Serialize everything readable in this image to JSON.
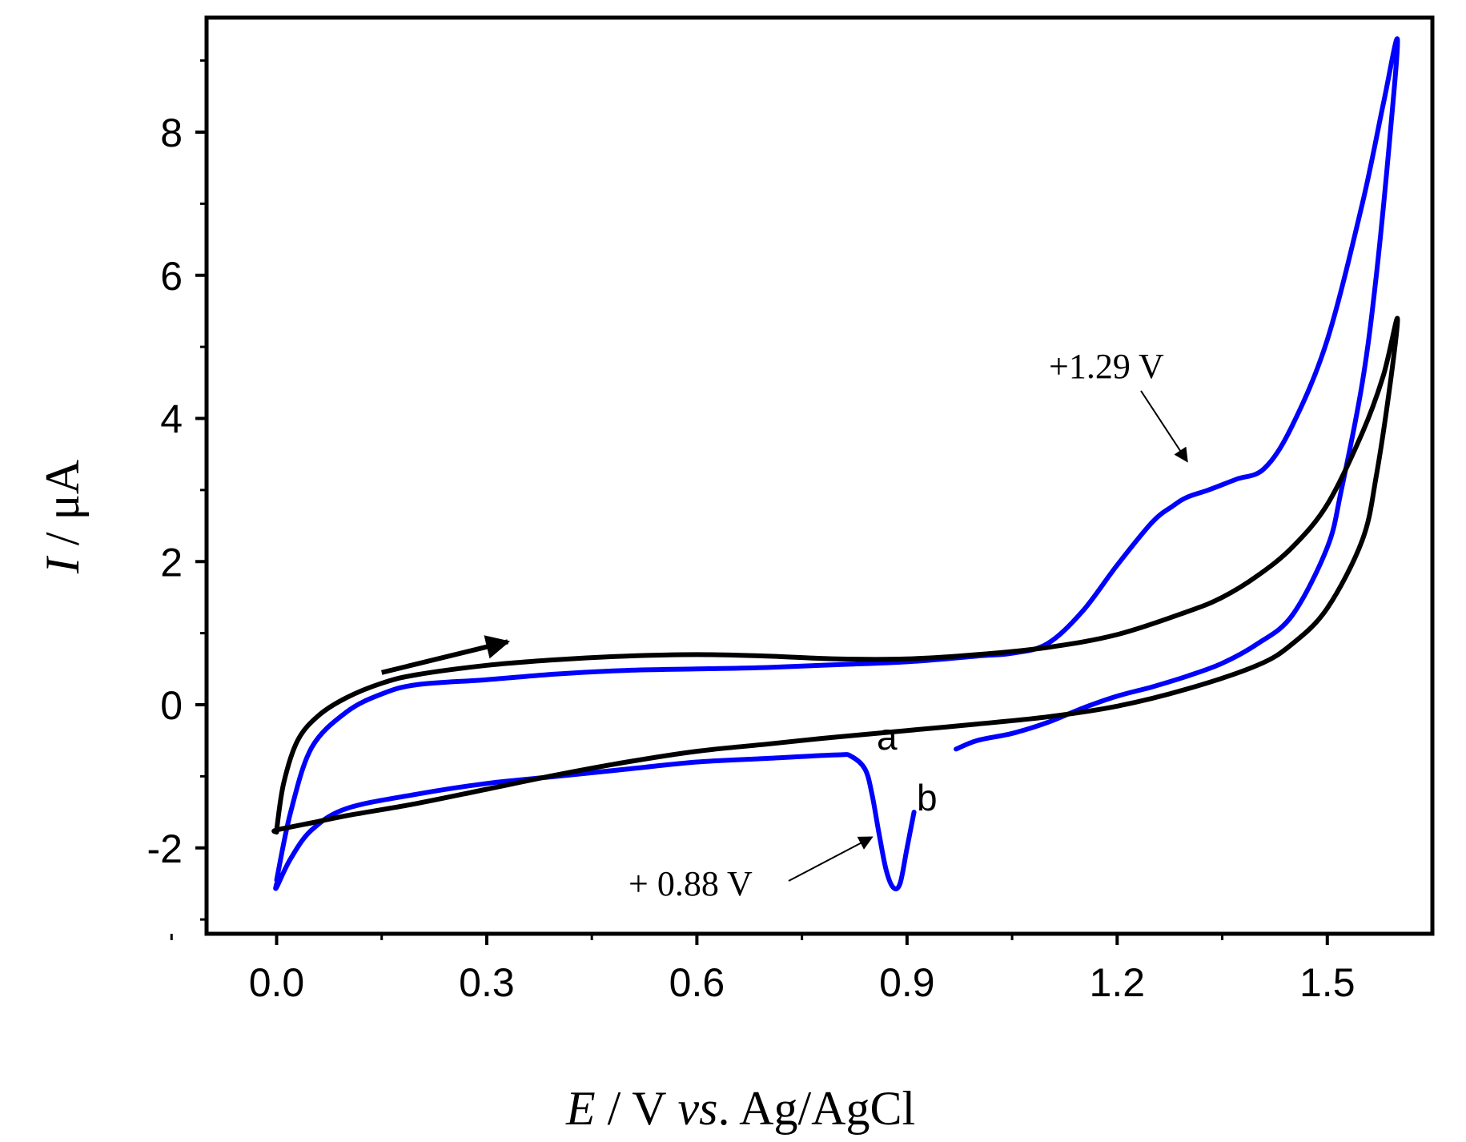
{
  "chart_data": {
    "type": "line",
    "xlabel": {
      "symbol": "E",
      "rest": " / V ",
      "vs": "vs",
      "ref": ". Ag/AgCl"
    },
    "ylabel": {
      "symbol": "I",
      "rest": " / μA"
    },
    "xlim": [
      -0.1,
      1.65
    ],
    "ylim": [
      -3.2,
      9.6
    ],
    "xticks": [
      0.0,
      0.3,
      0.6,
      0.9,
      1.2,
      1.5
    ],
    "xtick_labels": [
      "0.0",
      "0.3",
      "0.6",
      "0.9",
      "1.2",
      "1.5"
    ],
    "yticks": [
      -2,
      0,
      2,
      4,
      6,
      8
    ],
    "ytick_labels": [
      "-2",
      "0",
      "2",
      "4",
      "6",
      "8"
    ],
    "series": [
      {
        "name": "a",
        "color": "#000000",
        "x": [
          0.0,
          0.01,
          0.03,
          0.06,
          0.1,
          0.15,
          0.2,
          0.3,
          0.4,
          0.5,
          0.6,
          0.7,
          0.8,
          0.9,
          1.0,
          1.1,
          1.2,
          1.3,
          1.35,
          1.4,
          1.45,
          1.5,
          1.55,
          1.58,
          1.6,
          1.59,
          1.57,
          1.55,
          1.5,
          1.45,
          1.4,
          1.3,
          1.2,
          1.1,
          1.0,
          0.9,
          0.8,
          0.7,
          0.6,
          0.5,
          0.4,
          0.3,
          0.2,
          0.1,
          0.05,
          0.0,
          0.0
        ],
        "y": [
          -1.75,
          -1.1,
          -0.5,
          -0.15,
          0.1,
          0.3,
          0.42,
          0.55,
          0.63,
          0.68,
          0.7,
          0.68,
          0.64,
          0.64,
          0.7,
          0.8,
          0.98,
          1.3,
          1.5,
          1.8,
          2.2,
          2.8,
          3.8,
          4.6,
          5.4,
          4.5,
          3.2,
          2.3,
          1.35,
          0.85,
          0.55,
          0.22,
          -0.02,
          -0.17,
          -0.27,
          -0.36,
          -0.45,
          -0.55,
          -0.65,
          -0.8,
          -0.98,
          -1.18,
          -1.38,
          -1.55,
          -1.65,
          -1.75,
          -1.78
        ]
      },
      {
        "name": "b",
        "color": "#0000ff",
        "x": [
          0.0,
          0.02,
          0.05,
          0.1,
          0.15,
          0.2,
          0.3,
          0.4,
          0.5,
          0.6,
          0.7,
          0.8,
          0.9,
          1.0,
          1.05,
          1.1,
          1.15,
          1.2,
          1.25,
          1.28,
          1.3,
          1.33,
          1.37,
          1.41,
          1.45,
          1.5,
          1.55,
          1.58,
          1.6,
          1.59,
          1.57,
          1.55,
          1.52,
          1.5,
          1.45,
          1.4,
          1.35,
          1.3,
          1.25,
          1.2,
          1.15,
          1.1,
          1.05,
          1.0,
          0.97,
          null,
          0.91,
          0.9,
          0.89,
          0.88,
          0.87,
          0.86,
          0.85,
          0.84,
          0.82,
          0.8,
          0.7,
          0.6,
          0.5,
          0.4,
          0.3,
          0.2,
          0.1,
          0.05,
          0.02,
          0.0,
          0.0
        ],
        "y": [
          -2.45,
          -1.5,
          -0.6,
          -0.1,
          0.15,
          0.28,
          0.35,
          0.43,
          0.48,
          0.5,
          0.52,
          0.56,
          0.6,
          0.68,
          0.72,
          0.85,
          1.3,
          1.95,
          2.55,
          2.78,
          2.9,
          3.0,
          3.15,
          3.3,
          3.9,
          5.1,
          7.0,
          8.4,
          9.3,
          8.0,
          6.0,
          4.5,
          3.0,
          2.2,
          1.25,
          0.85,
          0.58,
          0.4,
          0.25,
          0.12,
          -0.05,
          -0.25,
          -0.4,
          -0.5,
          -0.62,
          null,
          -1.5,
          -2.0,
          -2.5,
          -2.55,
          -2.3,
          -1.8,
          -1.25,
          -0.9,
          -0.72,
          -0.7,
          -0.75,
          -0.8,
          -0.9,
          -1.0,
          -1.1,
          -1.25,
          -1.45,
          -1.75,
          -2.15,
          -2.55,
          -2.5
        ]
      }
    ],
    "annotations": [
      {
        "text": "+1.29 V",
        "points_to": [
          1.3,
          3.4
        ],
        "position": "above-left of point"
      },
      {
        "text": "+ 0.88 V",
        "points_to": [
          0.85,
          -1.85
        ],
        "position": "lower-left of point"
      },
      {
        "text": "a",
        "type": "curve-label",
        "near": [
          0.88,
          -0.3
        ]
      },
      {
        "text": "b",
        "type": "curve-label",
        "near": [
          0.94,
          -1.25
        ]
      },
      {
        "text": "",
        "type": "scan-direction-arrow",
        "from": [
          0.15,
          0.45
        ],
        "to": [
          0.33,
          0.88
        ]
      }
    ]
  }
}
